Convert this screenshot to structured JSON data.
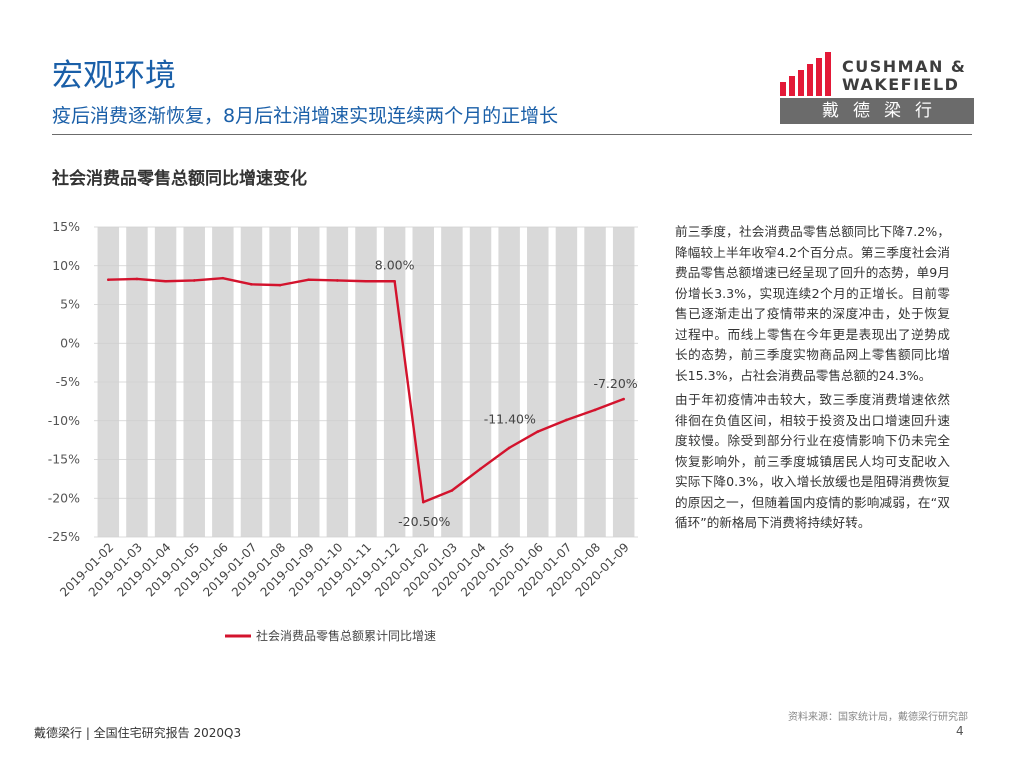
{
  "header": {
    "title": "宏观环境",
    "subtitle": "疫后消费逐渐恢复，8月后社消增速实现连续两个月的正增长"
  },
  "logo": {
    "line1": "CUSHMAN &",
    "line2": "WAKEFIELD",
    "chinese": "戴德梁行",
    "brand_color": "#e31937"
  },
  "chart_title": "社会消费品零售总额同比增速变化",
  "chart_data": {
    "type": "line",
    "categories": [
      "2019-01-02",
      "2019-01-03",
      "2019-01-04",
      "2019-01-05",
      "2019-01-06",
      "2019-01-07",
      "2019-01-08",
      "2019-01-09",
      "2019-01-10",
      "2019-01-11",
      "2019-01-12",
      "2020-01-02",
      "2020-01-03",
      "2020-01-04",
      "2020-01-05",
      "2020-01-06",
      "2020-01-07",
      "2020-01-08",
      "2020-01-09"
    ],
    "series": [
      {
        "name": "社会消费品零售总额累计同比增速",
        "color": "#d3132d",
        "values": [
          8.2,
          8.3,
          8.0,
          8.1,
          8.4,
          7.6,
          7.5,
          8.2,
          8.1,
          8.0,
          8.0,
          -20.5,
          -19.0,
          -16.2,
          -13.5,
          -11.4,
          -9.9,
          -8.6,
          -7.2
        ]
      }
    ],
    "data_labels": [
      {
        "index": 10,
        "text": "8.00%"
      },
      {
        "index": 11,
        "text": "-20.50%"
      },
      {
        "index": 15,
        "text": "-11.40%"
      },
      {
        "index": 18,
        "text": "-7.20%"
      }
    ],
    "y_ticks": [
      "15%",
      "10%",
      "5%",
      "0%",
      "-5%",
      "-10%",
      "-15%",
      "-20%",
      "-25%"
    ],
    "ylim": [
      -25,
      15
    ],
    "grid": true,
    "band_color": "#d9d9d9",
    "legend_position": "bottom"
  },
  "body": {
    "paragraph1": "前三季度，社会消费品零售总额同比下降7.2%，降幅较上半年收窄4.2个百分点。第三季度社会消费品零售总额增速已经呈现了回升的态势，单9月份增长3.3%，实现连续2个月的正增长。目前零售已逐渐走出了疫情带来的深度冲击，处于恢复过程中。而线上零售在今年更是表现出了逆势成长的态势，前三季度实物商品网上零售额同比增长15.3%，占社会消费品零售总额的24.3%。",
    "paragraph2": "由于年初疫情冲击较大，致三季度消费增速依然徘徊在负值区间，相较于投资及出口增速回升速度较慢。除受到部分行业在疫情影响下仍未完全恢复影响外，前三季度城镇居民人均可支配收入实际下降0.3%，收入增长放缓也是阻碍消费恢复的原因之一，但随着国内疫情的影响减弱，在“双循环”的新格局下消费将持续好转。"
  },
  "source": "资料来源：国家统计局，戴德梁行研究部",
  "footer": "戴德梁行 | 全国住宅研究报告 2020Q3",
  "page_number": "4"
}
